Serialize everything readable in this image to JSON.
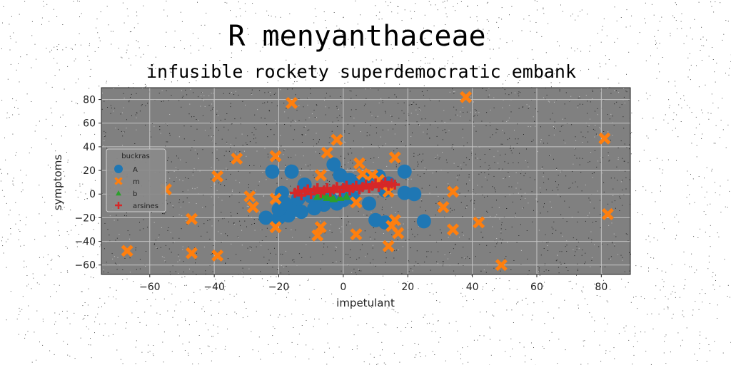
{
  "chart_data": {
    "type": "scatter",
    "title": "R menyanthaceae",
    "subtitle": "infusible rockety superdemocratic embank",
    "xlabel": "impetulant",
    "ylabel": "symptoms",
    "xlim": [
      -75,
      89
    ],
    "ylim": [
      -68,
      90
    ],
    "xticks": [
      -60,
      -40,
      -20,
      0,
      20,
      40,
      60,
      80
    ],
    "yticks": [
      -60,
      -40,
      -20,
      0,
      20,
      40,
      60,
      80
    ],
    "xtick_labels": [
      "−60",
      "−40",
      "−20",
      "0",
      "20",
      "40",
      "60",
      "80"
    ],
    "ytick_labels": [
      "−60",
      "−40",
      "−20",
      "0",
      "20",
      "40",
      "60",
      "80"
    ],
    "grid": true,
    "plot_background": "#808080",
    "legend": {
      "title": "buckras",
      "placement": "center-left"
    },
    "series": [
      {
        "name": "A",
        "marker": "circle",
        "color": "#1f77b4",
        "points": [
          [
            -22,
            19
          ],
          [
            -16,
            19
          ],
          [
            -19,
            1
          ],
          [
            -12,
            8
          ],
          [
            -10,
            -2
          ],
          [
            -8,
            -6
          ],
          [
            -6,
            -9
          ],
          [
            -2,
            -8
          ],
          [
            -4,
            -4
          ],
          [
            -1,
            16
          ],
          [
            -3,
            25
          ],
          [
            0,
            -5
          ],
          [
            2,
            12
          ],
          [
            5,
            8
          ],
          [
            7,
            14
          ],
          [
            11,
            15
          ],
          [
            14,
            9
          ],
          [
            13,
            3
          ],
          [
            19,
            19
          ],
          [
            19,
            1
          ],
          [
            22,
            0
          ],
          [
            8,
            -8
          ],
          [
            10,
            -22
          ],
          [
            13,
            -24
          ],
          [
            25,
            -23
          ],
          [
            -13,
            -15
          ],
          [
            -17,
            -18
          ],
          [
            -20,
            -20
          ],
          [
            -24,
            -20
          ],
          [
            -20,
            -13
          ],
          [
            -15,
            -11
          ],
          [
            -9,
            -12
          ],
          [
            -5,
            -3
          ],
          [
            3,
            -3
          ],
          [
            1,
            4
          ],
          [
            -14,
            -4
          ],
          [
            -18,
            -8
          ]
        ]
      },
      {
        "name": "m",
        "marker": "x",
        "color": "#ff7f0e",
        "points": [
          [
            -16,
            77
          ],
          [
            38,
            82
          ],
          [
            81,
            47
          ],
          [
            -2,
            46
          ],
          [
            -21,
            32
          ],
          [
            -33,
            30
          ],
          [
            -5,
            35
          ],
          [
            16,
            31
          ],
          [
            5,
            26
          ],
          [
            -39,
            15
          ],
          [
            -7,
            16
          ],
          [
            6,
            17
          ],
          [
            9,
            16
          ],
          [
            -55,
            4
          ],
          [
            -29,
            -2
          ],
          [
            -21,
            -4
          ],
          [
            -28,
            -11
          ],
          [
            14,
            2
          ],
          [
            34,
            2
          ],
          [
            4,
            -7
          ],
          [
            31,
            -11
          ],
          [
            -47,
            -21
          ],
          [
            16,
            -22
          ],
          [
            15,
            -27
          ],
          [
            17,
            -33
          ],
          [
            42,
            -24
          ],
          [
            82,
            -17
          ],
          [
            -21,
            -28
          ],
          [
            -7,
            -28
          ],
          [
            -8,
            -35
          ],
          [
            4,
            -34
          ],
          [
            34,
            -30
          ],
          [
            14,
            -44
          ],
          [
            -67,
            -48
          ],
          [
            -47,
            -50
          ],
          [
            -39,
            -52
          ],
          [
            49,
            -60
          ],
          [
            11,
            12
          ]
        ]
      },
      {
        "name": "b",
        "marker": "triangle",
        "color": "#2ca02c",
        "points": [
          [
            -8,
            -2
          ],
          [
            -5,
            -3
          ],
          [
            -3,
            -4
          ],
          [
            -1,
            -3
          ],
          [
            1,
            -2
          ],
          [
            -6,
            -1
          ],
          [
            -4,
            -2
          ]
        ]
      },
      {
        "name": "arsines",
        "marker": "plus",
        "color": "#d62728",
        "points": [
          [
            -15,
            1
          ],
          [
            -12,
            2
          ],
          [
            -9,
            3
          ],
          [
            -6,
            3
          ],
          [
            -3,
            4
          ],
          [
            0,
            5
          ],
          [
            3,
            5
          ],
          [
            6,
            6
          ],
          [
            9,
            7
          ],
          [
            12,
            8
          ],
          [
            15,
            9
          ],
          [
            -13,
            -1
          ],
          [
            -10,
            0
          ],
          [
            -7,
            1
          ],
          [
            -4,
            2
          ],
          [
            -1,
            2
          ],
          [
            2,
            3
          ],
          [
            5,
            4
          ],
          [
            8,
            5
          ],
          [
            11,
            6
          ],
          [
            14,
            7
          ],
          [
            16,
            8
          ],
          [
            -14,
            3
          ],
          [
            -11,
            4
          ],
          [
            -8,
            5
          ],
          [
            -5,
            5
          ],
          [
            -2,
            6
          ],
          [
            1,
            7
          ],
          [
            4,
            7
          ],
          [
            7,
            8
          ],
          [
            10,
            9
          ],
          [
            13,
            10
          ]
        ]
      }
    ]
  }
}
